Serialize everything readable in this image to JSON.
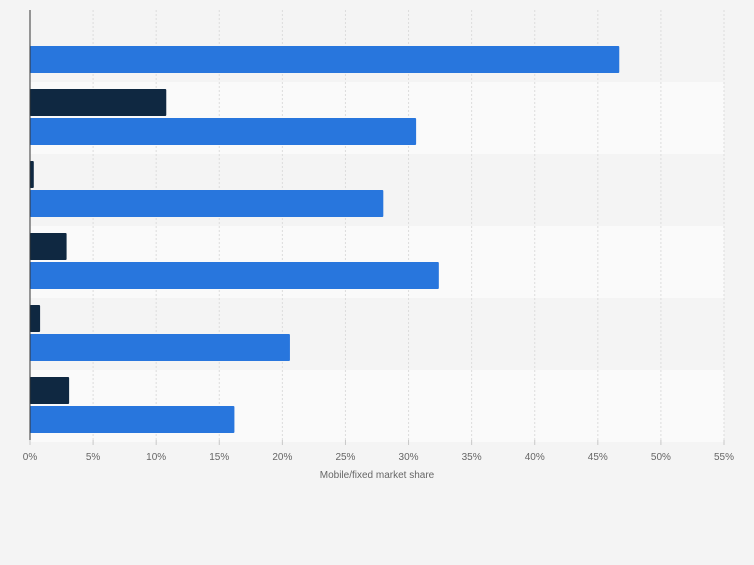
{
  "chart_data": {
    "type": "bar",
    "orientation": "horizontal",
    "categories": [
      "",
      "",
      "",
      "",
      "",
      ""
    ],
    "series": [
      {
        "color": "#0f2841",
        "values": [
          0,
          10.8,
          0.3,
          2.9,
          0.8,
          3.1
        ]
      },
      {
        "color": "#2876dd",
        "values": [
          46.7,
          30.6,
          28.0,
          32.4,
          20.6,
          16.2
        ]
      }
    ],
    "xlabel": "Mobile/fixed market share",
    "ylabel": "",
    "xlim": [
      0,
      55
    ],
    "xticks": [
      "0%",
      "5%",
      "10%",
      "15%",
      "20%",
      "25%",
      "30%",
      "35%",
      "40%",
      "45%",
      "50%",
      "55%"
    ],
    "grid": true,
    "legend": "none"
  }
}
